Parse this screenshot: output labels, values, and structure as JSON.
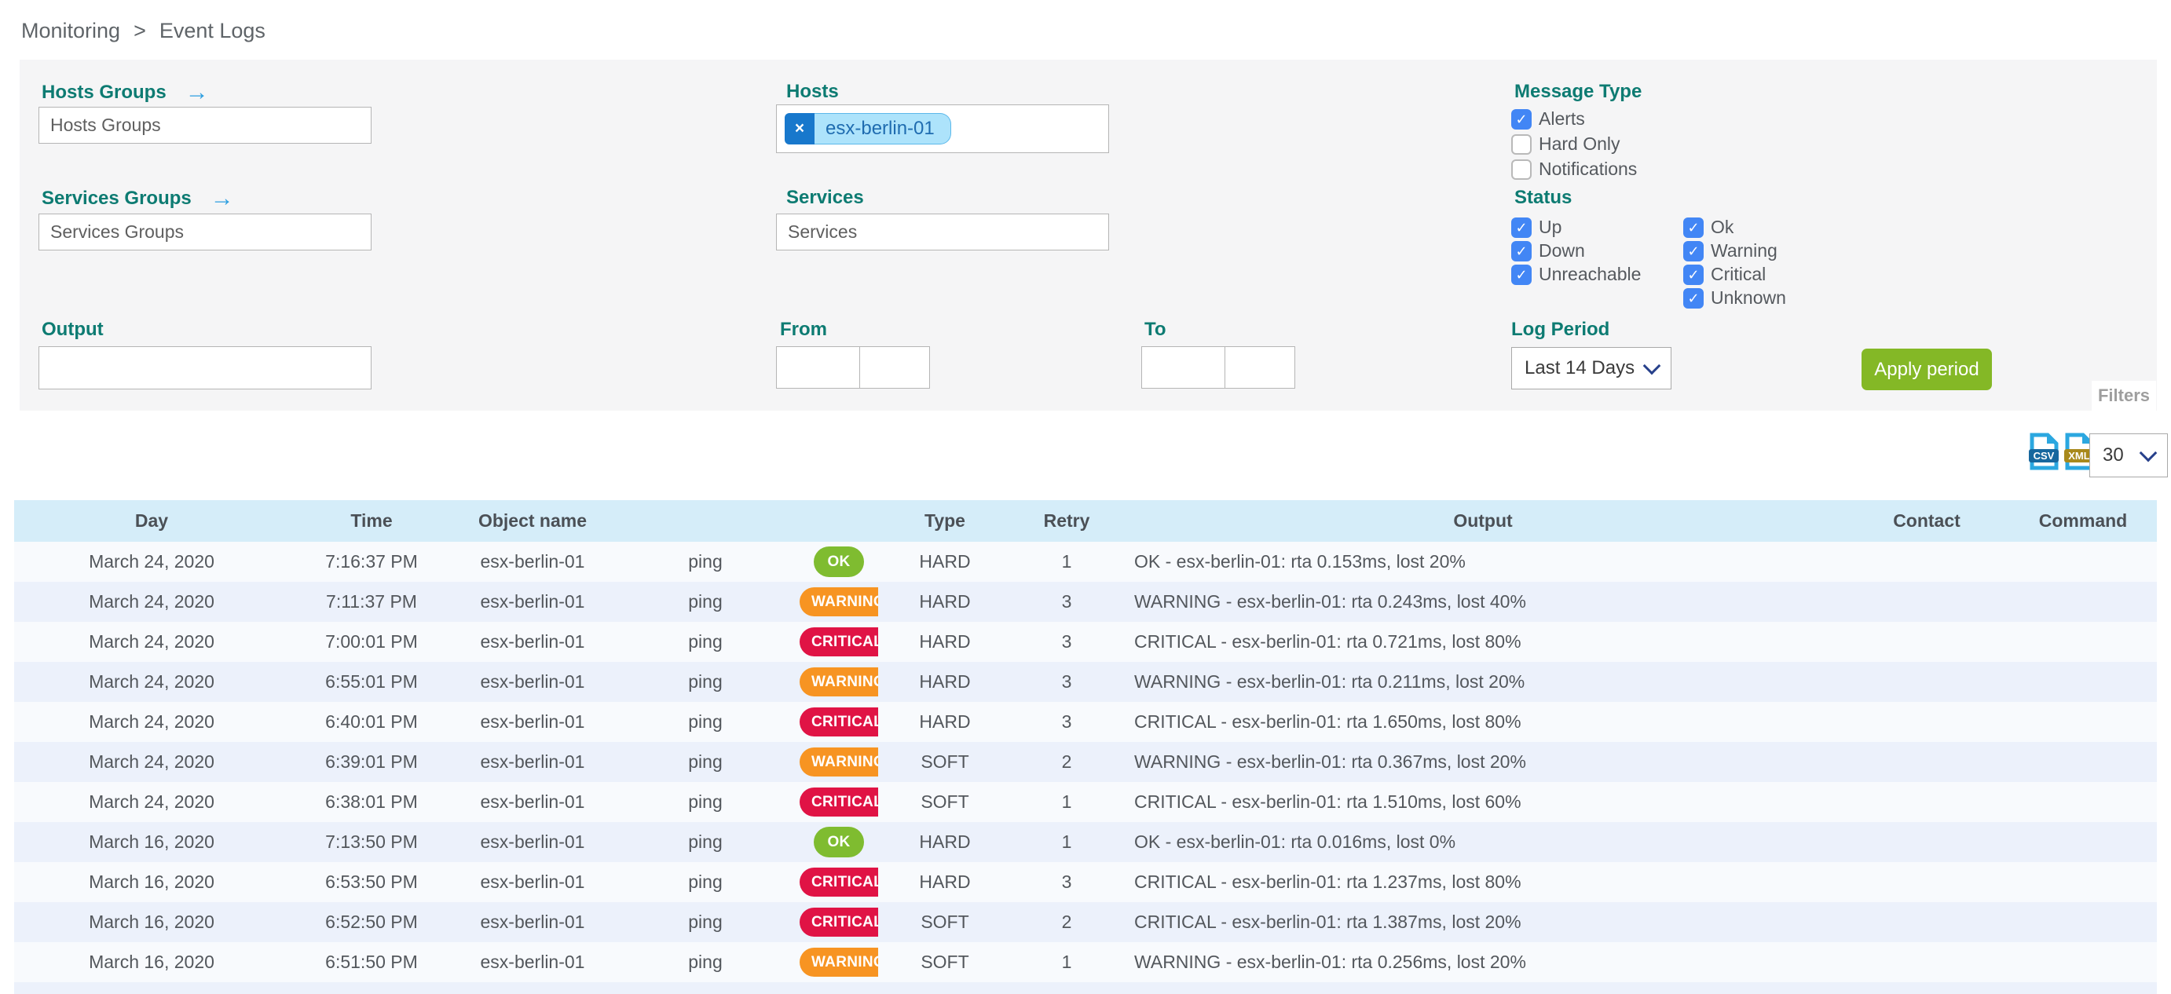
{
  "breadcrumb": {
    "items": [
      "Monitoring",
      "Event Logs"
    ],
    "separator": ">"
  },
  "filter_panel": {
    "hosts_groups": {
      "label": "Hosts Groups",
      "placeholder": "Hosts Groups"
    },
    "services_groups": {
      "label": "Services Groups",
      "placeholder": "Services Groups"
    },
    "hosts": {
      "label": "Hosts",
      "selected_tags": [
        "esx-berlin-01"
      ],
      "remove_symbol": "×"
    },
    "services": {
      "label": "Services",
      "placeholder": "Services"
    },
    "output": {
      "label": "Output",
      "value": ""
    },
    "from": {
      "label": "From",
      "date_value": "",
      "time_value": ""
    },
    "to": {
      "label": "To",
      "date_value": "",
      "time_value": ""
    },
    "message_type": {
      "label": "Message Type",
      "options": [
        {
          "label": "Alerts",
          "checked": true
        },
        {
          "label": "Hard Only",
          "checked": false
        },
        {
          "label": "Notifications",
          "checked": false
        }
      ]
    },
    "status": {
      "label": "Status",
      "host_options": [
        {
          "label": "Up",
          "checked": true
        },
        {
          "label": "Down",
          "checked": true
        },
        {
          "label": "Unreachable",
          "checked": true
        }
      ],
      "service_options": [
        {
          "label": "Ok",
          "checked": true
        },
        {
          "label": "Warning",
          "checked": true
        },
        {
          "label": "Critical",
          "checked": true
        },
        {
          "label": "Unknown",
          "checked": true
        }
      ]
    },
    "log_period": {
      "label": "Log Period",
      "selected": "Last 14 Days"
    },
    "apply_button_label": "Apply period",
    "filters_tab_label": "Filters"
  },
  "toolbar": {
    "csv_export_label": "CSV",
    "xml_export_label": "XML",
    "page_size": "30"
  },
  "event_table": {
    "columns": [
      "Day",
      "Time",
      "Object name",
      "",
      "",
      "Type",
      "Retry",
      "Output",
      "Contact",
      "Command"
    ],
    "rows": [
      {
        "day": "March 24, 2020",
        "time": "7:16:37 PM",
        "object_name": "esx-berlin-01",
        "service": "ping",
        "status": "OK",
        "type": "HARD",
        "retry": "1",
        "output": "OK - esx-berlin-01: rta 0.153ms, lost 20%",
        "contact": "",
        "command": ""
      },
      {
        "day": "March 24, 2020",
        "time": "7:11:37 PM",
        "object_name": "esx-berlin-01",
        "service": "ping",
        "status": "WARNING",
        "type": "HARD",
        "retry": "3",
        "output": "WARNING - esx-berlin-01: rta 0.243ms, lost 40%",
        "contact": "",
        "command": ""
      },
      {
        "day": "March 24, 2020",
        "time": "7:00:01 PM",
        "object_name": "esx-berlin-01",
        "service": "ping",
        "status": "CRITICAL",
        "type": "HARD",
        "retry": "3",
        "output": "CRITICAL - esx-berlin-01: rta 0.721ms, lost 80%",
        "contact": "",
        "command": ""
      },
      {
        "day": "March 24, 2020",
        "time": "6:55:01 PM",
        "object_name": "esx-berlin-01",
        "service": "ping",
        "status": "WARNING",
        "type": "HARD",
        "retry": "3",
        "output": "WARNING - esx-berlin-01: rta 0.211ms, lost 20%",
        "contact": "",
        "command": ""
      },
      {
        "day": "March 24, 2020",
        "time": "6:40:01 PM",
        "object_name": "esx-berlin-01",
        "service": "ping",
        "status": "CRITICAL",
        "type": "HARD",
        "retry": "3",
        "output": "CRITICAL - esx-berlin-01: rta 1.650ms, lost 80%",
        "contact": "",
        "command": ""
      },
      {
        "day": "March 24, 2020",
        "time": "6:39:01 PM",
        "object_name": "esx-berlin-01",
        "service": "ping",
        "status": "WARNING",
        "type": "SOFT",
        "retry": "2",
        "output": "WARNING - esx-berlin-01: rta 0.367ms, lost 20%",
        "contact": "",
        "command": ""
      },
      {
        "day": "March 24, 2020",
        "time": "6:38:01 PM",
        "object_name": "esx-berlin-01",
        "service": "ping",
        "status": "CRITICAL",
        "type": "SOFT",
        "retry": "1",
        "output": "CRITICAL - esx-berlin-01: rta 1.510ms, lost 60%",
        "contact": "",
        "command": ""
      },
      {
        "day": "March 16, 2020",
        "time": "7:13:50 PM",
        "object_name": "esx-berlin-01",
        "service": "ping",
        "status": "OK",
        "type": "HARD",
        "retry": "1",
        "output": "OK - esx-berlin-01: rta 0.016ms, lost 0%",
        "contact": "",
        "command": ""
      },
      {
        "day": "March 16, 2020",
        "time": "6:53:50 PM",
        "object_name": "esx-berlin-01",
        "service": "ping",
        "status": "CRITICAL",
        "type": "HARD",
        "retry": "3",
        "output": "CRITICAL - esx-berlin-01: rta 1.237ms, lost 80%",
        "contact": "",
        "command": ""
      },
      {
        "day": "March 16, 2020",
        "time": "6:52:50 PM",
        "object_name": "esx-berlin-01",
        "service": "ping",
        "status": "CRITICAL",
        "type": "SOFT",
        "retry": "2",
        "output": "CRITICAL - esx-berlin-01: rta 1.387ms, lost 20%",
        "contact": "",
        "command": ""
      },
      {
        "day": "March 16, 2020",
        "time": "6:51:50 PM",
        "object_name": "esx-berlin-01",
        "service": "ping",
        "status": "WARNING",
        "type": "SOFT",
        "retry": "1",
        "output": "WARNING - esx-berlin-01: rta 0.256ms, lost 20%",
        "contact": "",
        "command": ""
      }
    ]
  },
  "colors": {
    "label_teal": "#0d7b72",
    "checkbox_blue": "#4286f5",
    "apply_green": "#84b826",
    "ok_badge": "#7fbc30",
    "warning_badge": "#f79422",
    "critical_badge": "#e01345",
    "table_header_blue": "#d5edf9",
    "row_alternate": "#ecf1fb",
    "tag_background": "#ade3fb",
    "tag_remove_blue": "#1878cc"
  }
}
